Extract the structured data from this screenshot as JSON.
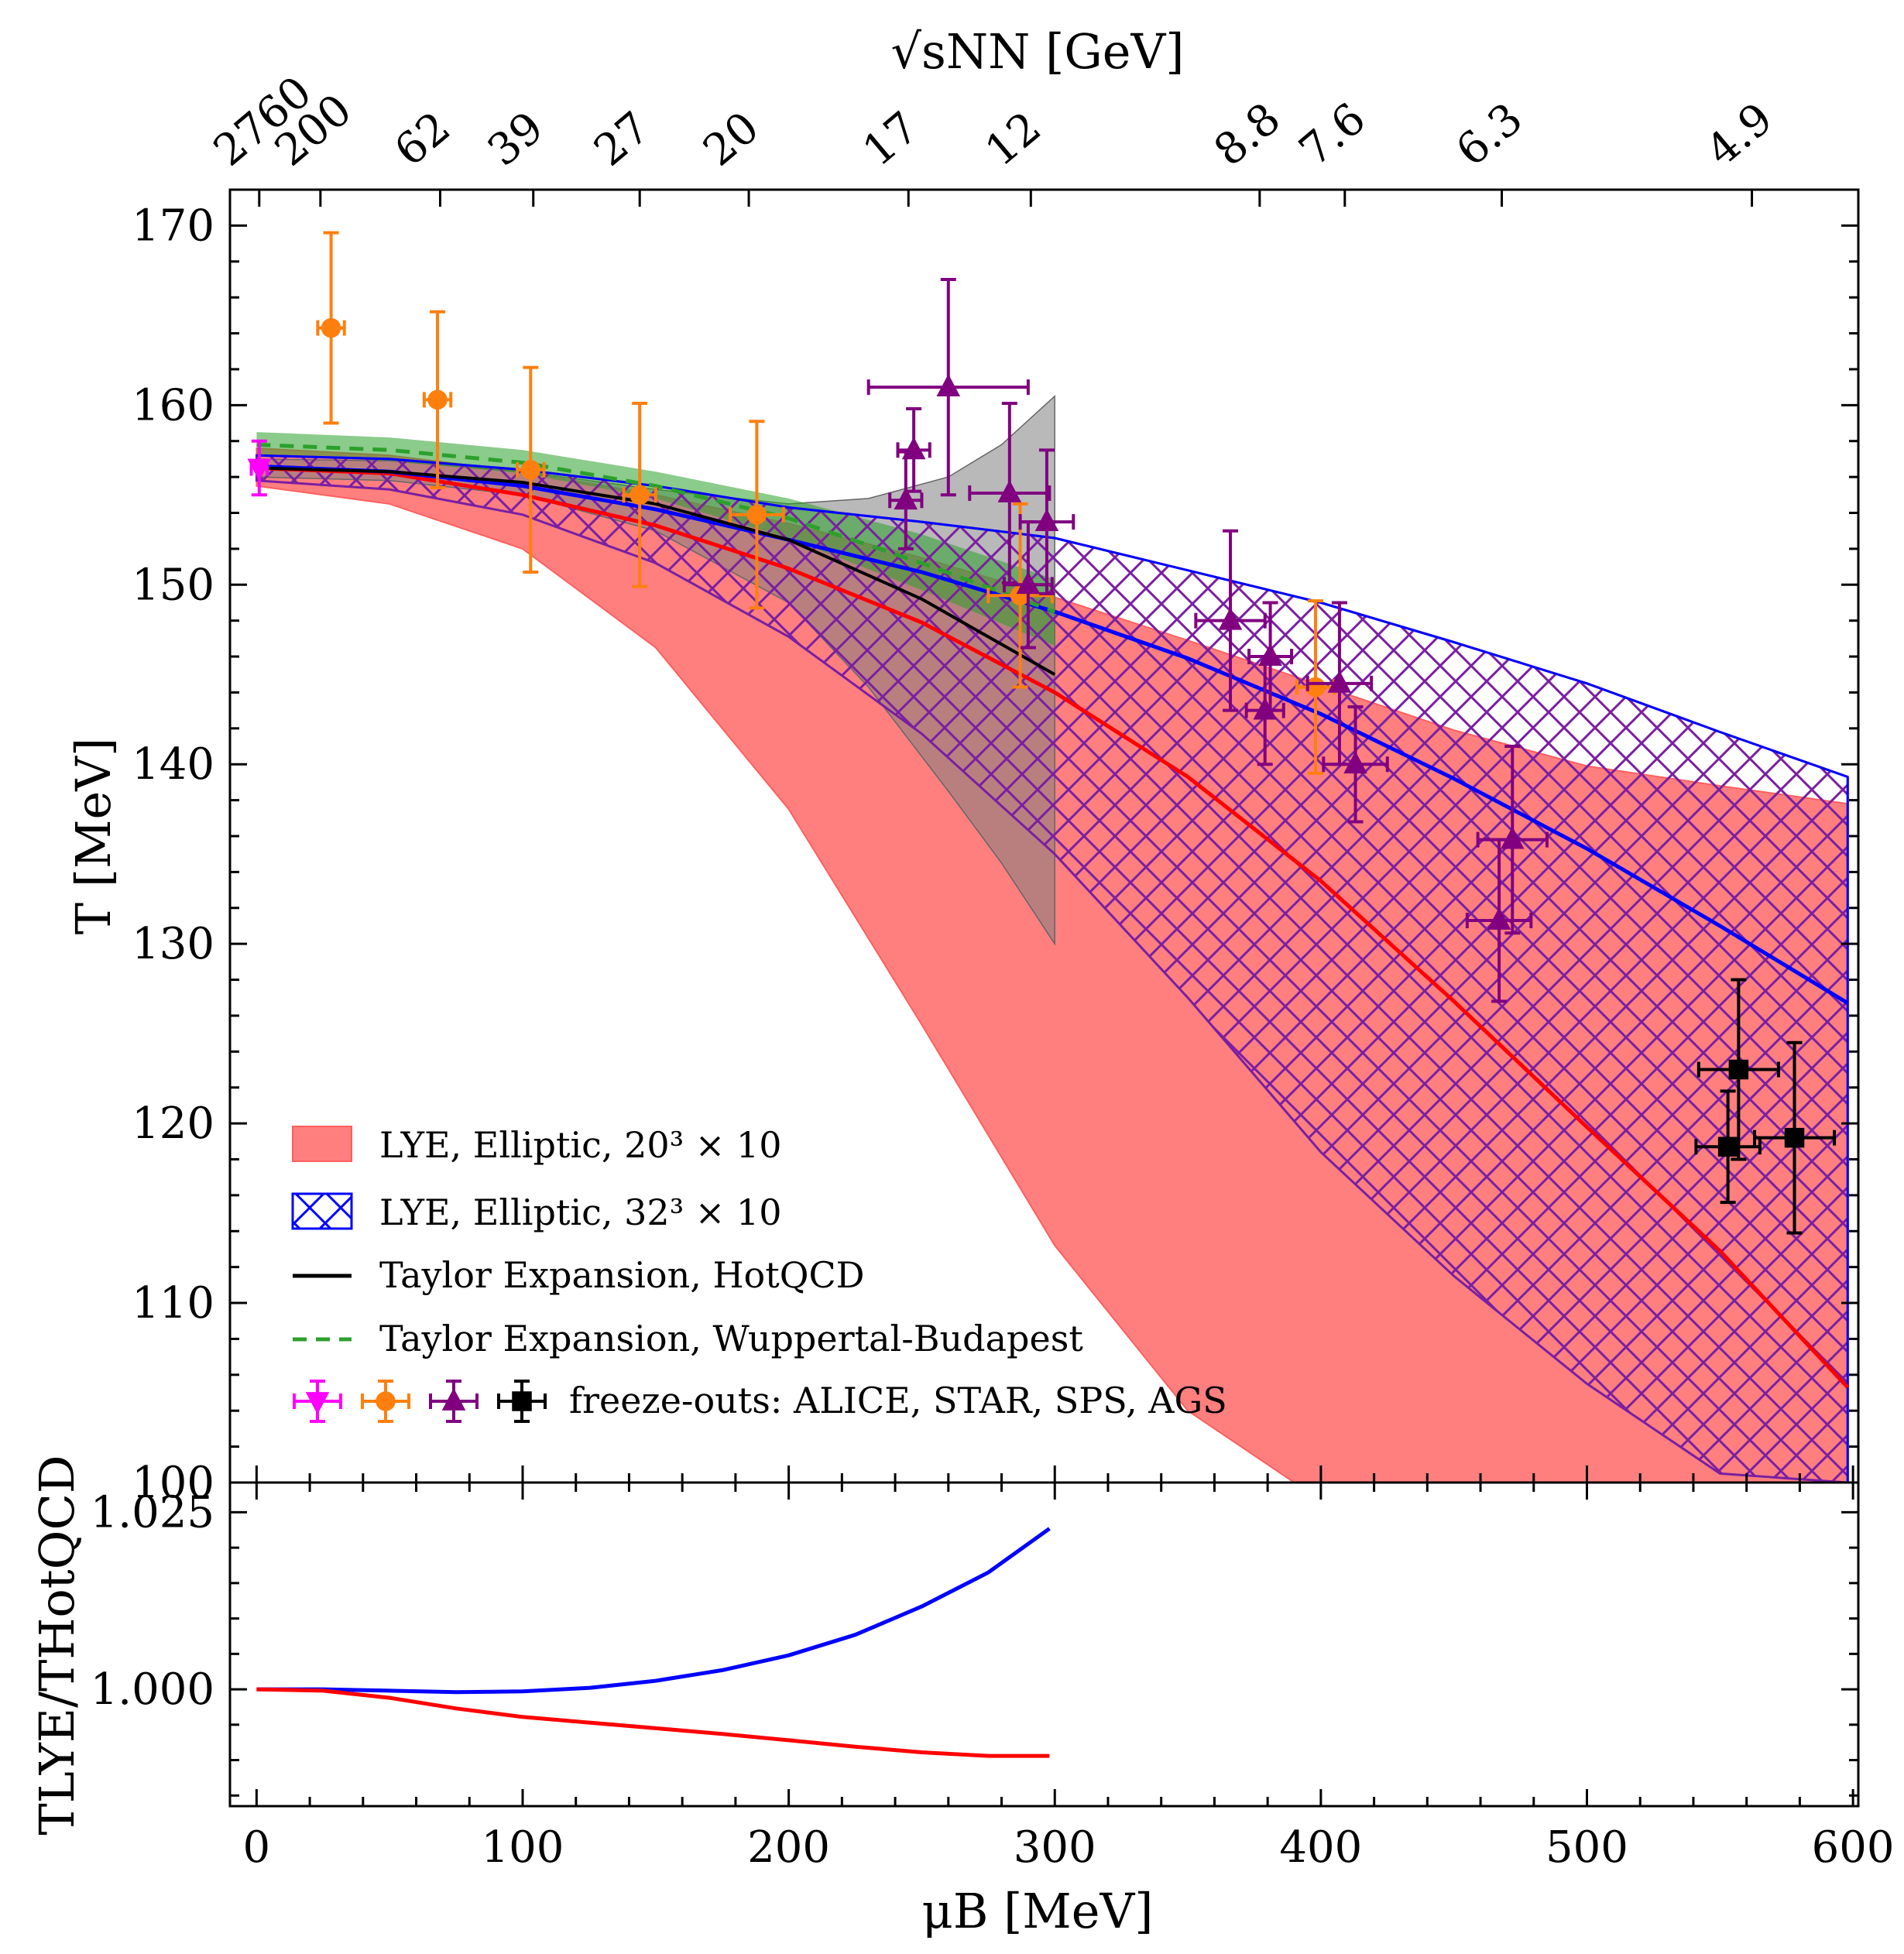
{
  "chart_data": [
    {
      "type": "line",
      "panel": "main",
      "xlabel": "μB [MeV]",
      "ylabel": "T [MeV]",
      "xlim": [
        -10,
        602
      ],
      "ylim": [
        100,
        172
      ],
      "x_ticks": [
        0,
        100,
        200,
        300,
        400,
        500,
        600
      ],
      "x_tick_labels": [
        "0",
        "100",
        "200",
        "300",
        "400",
        "500",
        "600"
      ],
      "y_ticks": [
        100,
        110,
        120,
        130,
        140,
        150,
        160,
        170
      ],
      "y_tick_labels": [
        "100",
        "110",
        "120",
        "130",
        "140",
        "150",
        "160",
        "170"
      ],
      "top_axis": {
        "label": "√sNN [GeV]",
        "ticks": [
          {
            "mu": 1,
            "label": "2760"
          },
          {
            "mu": 24,
            "label": "200"
          },
          {
            "mu": 69,
            "label": "62"
          },
          {
            "mu": 104,
            "label": "39"
          },
          {
            "mu": 144,
            "label": "27"
          },
          {
            "mu": 185,
            "label": "20"
          },
          {
            "mu": 245,
            "label": "17"
          },
          {
            "mu": 291,
            "label": "12"
          },
          {
            "mu": 377,
            "label": "8.8"
          },
          {
            "mu": 409,
            "label": "7.6"
          },
          {
            "mu": 468,
            "label": "6.3"
          },
          {
            "mu": 562,
            "label": "4.9"
          }
        ]
      },
      "bands": [
        {
          "name": "LYE, Elliptic, 20^3 x 10",
          "color": "#ff7f7f",
          "mu": [
            0,
            50,
            100,
            150,
            200,
            250,
            300,
            350,
            390,
            400,
            450,
            500,
            550,
            598
          ],
          "upper": [
            157.6,
            157.2,
            156.3,
            155.0,
            153.4,
            151.5,
            149.3,
            146.9,
            144.9,
            144.4,
            141.9,
            139.9,
            138.8,
            137.8
          ],
          "lower": [
            155.5,
            154.5,
            152.0,
            146.5,
            137.5,
            125.5,
            113.2,
            104.0,
            100,
            100,
            100,
            100,
            100,
            100
          ]
        },
        {
          "name": "LYE, Elliptic, 32^3 x 10",
          "color": "#0000ff",
          "hatch_color": "#6a0dad",
          "mu": [
            0,
            50,
            100,
            150,
            200,
            250,
            300,
            350,
            400,
            450,
            500,
            550,
            598
          ],
          "upper": [
            157.2,
            157.0,
            156.4,
            155.5,
            154.3,
            153.5,
            152.6,
            150.8,
            149.0,
            146.8,
            144.5,
            141.8,
            139.3
          ],
          "lower": [
            155.8,
            155.3,
            153.9,
            151.2,
            147.1,
            141.7,
            135.0,
            127.0,
            118.4,
            111.5,
            105.5,
            100.5,
            100
          ]
        },
        {
          "name": "HotQCD uncertainty",
          "color": "#808080",
          "mu": [
            0,
            50,
            100,
            150,
            200,
            230,
            260,
            280,
            300
          ],
          "upper": [
            157.0,
            156.9,
            156.3,
            155.3,
            154.5,
            154.8,
            156.0,
            157.8,
            160.5
          ],
          "lower": [
            156.0,
            155.8,
            155.0,
            153.0,
            149.0,
            144.3,
            138.5,
            134.5,
            130.0
          ]
        },
        {
          "name": "Wuppertal-Budapest uncertainty",
          "color": "#2ca02c",
          "mu": [
            0,
            50,
            100,
            150,
            200,
            250,
            300
          ],
          "upper": [
            158.5,
            158.2,
            157.5,
            156.3,
            154.8,
            152.8,
            150.3
          ],
          "lower": [
            157.2,
            156.9,
            156.2,
            154.8,
            152.6,
            149.7,
            146.6
          ]
        }
      ],
      "series": [
        {
          "name": "LYE, Elliptic, 20^3 x 10 (central)",
          "color": "#ff0000",
          "x": [
            0,
            50,
            100,
            150,
            200,
            250,
            300,
            350,
            400,
            450,
            500,
            550,
            598
          ],
          "y": [
            156.5,
            156.2,
            155.0,
            153.3,
            150.9,
            147.9,
            144.0,
            139.3,
            133.5,
            126.8,
            119.8,
            112.9,
            105.3
          ]
        },
        {
          "name": "LYE, Elliptic, 32^3 x 10 (central)",
          "color": "#0000ff",
          "x": [
            0,
            50,
            100,
            150,
            200,
            250,
            300,
            350,
            400,
            450,
            500,
            550,
            598
          ],
          "y": [
            156.6,
            156.3,
            155.5,
            154.2,
            152.5,
            150.7,
            148.5,
            145.9,
            142.8,
            139.2,
            135.3,
            131.0,
            126.7
          ]
        },
        {
          "name": "Taylor Expansion, HotQCD",
          "color": "#000000",
          "x": [
            0,
            50,
            100,
            150,
            200,
            250,
            300
          ],
          "y": [
            156.5,
            156.3,
            155.7,
            154.5,
            152.5,
            149.2,
            145.0
          ]
        },
        {
          "name": "Taylor Expansion, Wuppertal-Budapest",
          "color": "#2ca02c",
          "dashed": true,
          "x": [
            0,
            50,
            100,
            150,
            200,
            250,
            300
          ],
          "y": [
            157.8,
            157.5,
            156.8,
            155.5,
            153.7,
            151.2,
            148.5
          ]
        }
      ],
      "freeze_outs": [
        {
          "group": "ALICE",
          "color": "#ff00ff",
          "marker": "triangle-down",
          "points": [
            {
              "mu": 1,
              "T": 156.5,
              "xerr": 3,
              "yerr": 1.5
            }
          ]
        },
        {
          "group": "STAR",
          "color": "#ff7f0e",
          "marker": "circle",
          "points": [
            {
              "mu": 28,
              "T": 164.3,
              "xerr": 5,
              "yerr": 5.3
            },
            {
              "mu": 68,
              "T": 160.3,
              "xerr": 5,
              "yerr": 4.9
            },
            {
              "mu": 103,
              "T": 156.4,
              "xerr": 5,
              "yerr": 5.7
            },
            {
              "mu": 144,
              "T": 155.0,
              "xerr": 6,
              "yerr": 5.1
            },
            {
              "mu": 188,
              "T": 153.9,
              "xerr": 10,
              "yerr": 5.2
            },
            {
              "mu": 287,
              "T": 149.4,
              "xerr": 12,
              "yerr": 5.1
            },
            {
              "mu": 398,
              "T": 144.3,
              "xerr": 7,
              "yerr": 4.8
            }
          ]
        },
        {
          "group": "SPS",
          "color": "#800080",
          "marker": "triangle-up",
          "points": [
            {
              "mu": 247,
              "T": 157.5,
              "xerr": 6,
              "yerr": 2.3
            },
            {
              "mu": 244,
              "T": 154.7,
              "xerr": 6,
              "yerr": 2.7
            },
            {
              "mu": 260,
              "T": 161.0,
              "xerr": 30,
              "yerr": 6.0
            },
            {
              "mu": 283,
              "T": 155.1,
              "xerr": 15,
              "yerr": 5.0
            },
            {
              "mu": 297,
              "T": 153.5,
              "xerr": 10,
              "yerr": 4.0
            },
            {
              "mu": 290,
              "T": 150.0,
              "xerr": 9,
              "yerr": 3.5
            },
            {
              "mu": 366,
              "T": 148.0,
              "xerr": 13,
              "yerr": 5.0
            },
            {
              "mu": 381,
              "T": 146.0,
              "xerr": 8,
              "yerr": 3.0
            },
            {
              "mu": 379,
              "T": 143.0,
              "xerr": 7,
              "yerr": 3.0
            },
            {
              "mu": 407,
              "T": 144.5,
              "xerr": 12,
              "yerr": 4.5
            },
            {
              "mu": 413,
              "T": 140.0,
              "xerr": 12,
              "yerr": 3.2
            },
            {
              "mu": 472,
              "T": 135.8,
              "xerr": 13,
              "yerr": 5.2
            },
            {
              "mu": 467,
              "T": 131.3,
              "xerr": 12,
              "yerr": 4.5
            }
          ]
        },
        {
          "group": "AGS",
          "color": "#000000",
          "marker": "square",
          "points": [
            {
              "mu": 557,
              "T": 123.0,
              "xerr": 15,
              "yerr": 5.0
            },
            {
              "mu": 553,
              "T": 118.7,
              "xerr": 12,
              "yerr": 3.1
            },
            {
              "mu": 578,
              "T": 119.2,
              "xerr": 15,
              "yerr": 5.3
            }
          ]
        }
      ],
      "legend": {
        "placement": "lower-left",
        "entries": [
          {
            "kind": "patch",
            "label": "LYE, Elliptic, 20³ × 10",
            "color": "#ff7f7f"
          },
          {
            "kind": "hatch",
            "label": "LYE, Elliptic, 32³ × 10",
            "color": "#0000ff"
          },
          {
            "kind": "line",
            "label": "Taylor Expansion, HotQCD",
            "color": "#000000"
          },
          {
            "kind": "dashed",
            "label": "Taylor Expansion, Wuppertal-Budapest",
            "color": "#2ca02c"
          },
          {
            "kind": "markers",
            "label": "freeze-outs: ALICE, STAR, SPS, AGS",
            "colors": [
              "#ff00ff",
              "#ff7f0e",
              "#800080",
              "#000000"
            ]
          }
        ]
      }
    },
    {
      "type": "line",
      "panel": "ratio",
      "xlabel": "μB [MeV]",
      "ylabel": "TLYE/THotQCD",
      "xlim": [
        -10,
        602
      ],
      "ylim": [
        0.9835,
        1.0292
      ],
      "y_ticks": [
        1.0,
        1.025
      ],
      "y_tick_labels": [
        "1.000",
        "1.025"
      ],
      "series": [
        {
          "name": "32^3 x 10 / HotQCD",
          "color": "#0000ff",
          "x": [
            0,
            25,
            50,
            75,
            100,
            125,
            150,
            175,
            200,
            225,
            250,
            275,
            298
          ],
          "y": [
            1.0,
            1.0,
            0.9998,
            0.9996,
            0.9997,
            1.0002,
            1.0012,
            1.0027,
            1.0048,
            1.0077,
            1.0117,
            1.0165,
            1.0227
          ]
        },
        {
          "name": "20^3 x 10 / HotQCD",
          "color": "#ff0000",
          "x": [
            0,
            25,
            50,
            75,
            100,
            125,
            150,
            175,
            200,
            225,
            250,
            275,
            298
          ],
          "y": [
            1.0,
            0.9998,
            0.9988,
            0.9973,
            0.9961,
            0.9953,
            0.9945,
            0.9937,
            0.9928,
            0.9919,
            0.9911,
            0.9906,
            0.9906
          ]
        }
      ]
    }
  ]
}
